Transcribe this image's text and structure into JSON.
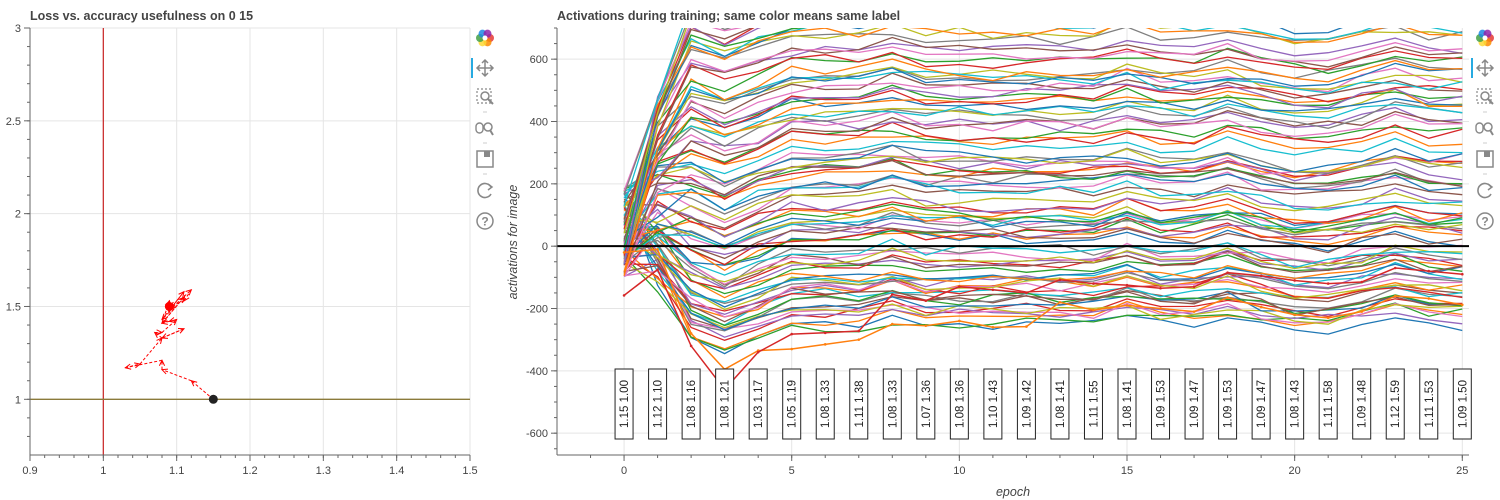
{
  "left_panel": {
    "chart_data": {
      "type": "line",
      "title": "Loss vs. accuracy usefulness on 0 15",
      "xlim": [
        0.9,
        1.5
      ],
      "ylim": [
        0.7,
        3.0
      ],
      "x_ticks": [
        0.9,
        1.0,
        1.1,
        1.2,
        1.3,
        1.4,
        1.5
      ],
      "y_ticks": [
        1,
        1.5,
        2,
        2.5,
        3
      ],
      "vline_x": 1.0,
      "hline_y": 1.0,
      "trajectory": [
        [
          1.15,
          1.0
        ],
        [
          1.12,
          1.1
        ],
        [
          1.08,
          1.16
        ],
        [
          1.08,
          1.21
        ],
        [
          1.03,
          1.17
        ],
        [
          1.05,
          1.19
        ],
        [
          1.08,
          1.33
        ],
        [
          1.11,
          1.38
        ],
        [
          1.08,
          1.33
        ],
        [
          1.07,
          1.36
        ],
        [
          1.08,
          1.36
        ],
        [
          1.1,
          1.43
        ],
        [
          1.09,
          1.42
        ],
        [
          1.08,
          1.41
        ],
        [
          1.11,
          1.55
        ],
        [
          1.08,
          1.41
        ],
        [
          1.09,
          1.53
        ],
        [
          1.09,
          1.47
        ],
        [
          1.09,
          1.53
        ],
        [
          1.09,
          1.47
        ],
        [
          1.08,
          1.43
        ],
        [
          1.11,
          1.58
        ],
        [
          1.09,
          1.48
        ],
        [
          1.12,
          1.59
        ],
        [
          1.11,
          1.53
        ],
        [
          1.09,
          1.5
        ]
      ],
      "start_point": [
        1.15,
        1.0
      ],
      "end_point": [
        1.09,
        1.5
      ]
    },
    "colors": {
      "trajectory": "#ff0000",
      "vline": "#cc3333",
      "hline": "#8b7a3a",
      "start": "#222222",
      "end": "#ff0000"
    }
  },
  "right_panel": {
    "chart_data": {
      "type": "line",
      "title": "Activations during training; same color means same label",
      "xlabel": "epoch",
      "ylabel": "activations for image",
      "xlim": [
        -2,
        25.2
      ],
      "ylim": [
        -670,
        700
      ],
      "x_ticks": [
        0,
        5,
        10,
        15,
        20,
        25
      ],
      "y_ticks": [
        -600,
        -400,
        -200,
        0,
        200,
        400,
        600
      ],
      "zero_line": 0,
      "epochs": [
        0,
        1,
        2,
        3,
        4,
        5,
        6,
        7,
        8,
        9,
        10,
        11,
        12,
        13,
        14,
        15,
        16,
        17,
        18,
        19,
        20,
        21,
        22,
        23,
        24,
        25
      ],
      "epoch_box_labels": [
        "1.15  1.00",
        "1.12  1.10",
        "1.08  1.16",
        "1.08  1.21",
        "1.03  1.17",
        "1.05  1.19",
        "1.08  1.33",
        "1.11  1.38",
        "1.08  1.33",
        "1.07  1.36",
        "1.08  1.36",
        "1.10  1.43",
        "1.09  1.42",
        "1.08  1.41",
        "1.11  1.55",
        "1.08  1.41",
        "1.09  1.53",
        "1.09  1.47",
        "1.09  1.53",
        "1.09  1.47",
        "1.08  1.43",
        "1.11  1.58",
        "1.09  1.48",
        "1.12  1.59",
        "1.11  1.53",
        "1.09  1.50"
      ],
      "series_count": 100,
      "highlighted_series": [
        {
          "color": "#ff7f0e",
          "values": [
            -20,
            -10,
            -280,
            -395,
            -335,
            -330,
            -315,
            -300,
            -250,
            -255,
            -240,
            -260,
            -258,
            -180,
            -205,
            -190,
            -200,
            -210,
            -165,
            -195,
            -220,
            -230,
            -210,
            -160,
            -168,
            -188
          ]
        },
        {
          "color": "#d62728",
          "values": [
            -158,
            -75,
            -320,
            -460,
            -340,
            -282,
            -278,
            -272,
            -155,
            -175,
            -130,
            -140,
            -150,
            -108,
            -120,
            -125,
            -135,
            -130,
            -85,
            -95,
            -110,
            -120,
            -115,
            -70,
            -80,
            -90
          ]
        }
      ]
    },
    "colors": {
      "palette": [
        "#1f77b4",
        "#ff7f0e",
        "#2ca02c",
        "#d62728",
        "#9467bd",
        "#8c564b",
        "#e377c2",
        "#7f7f7f",
        "#bcbd22",
        "#17becf"
      ],
      "zero_line": "#000000"
    }
  },
  "toolbar_left": {
    "tools": [
      "bokeh-logo-icon",
      "pan-icon",
      "box-zoom-icon",
      "wheel-zoom-icon",
      "save-icon",
      "reset-icon",
      "help-icon"
    ]
  },
  "toolbar_right": {
    "tools": [
      "bokeh-logo-icon",
      "pan-icon",
      "box-zoom-icon",
      "wheel-zoom-icon",
      "save-icon",
      "reset-icon",
      "help-icon"
    ]
  }
}
